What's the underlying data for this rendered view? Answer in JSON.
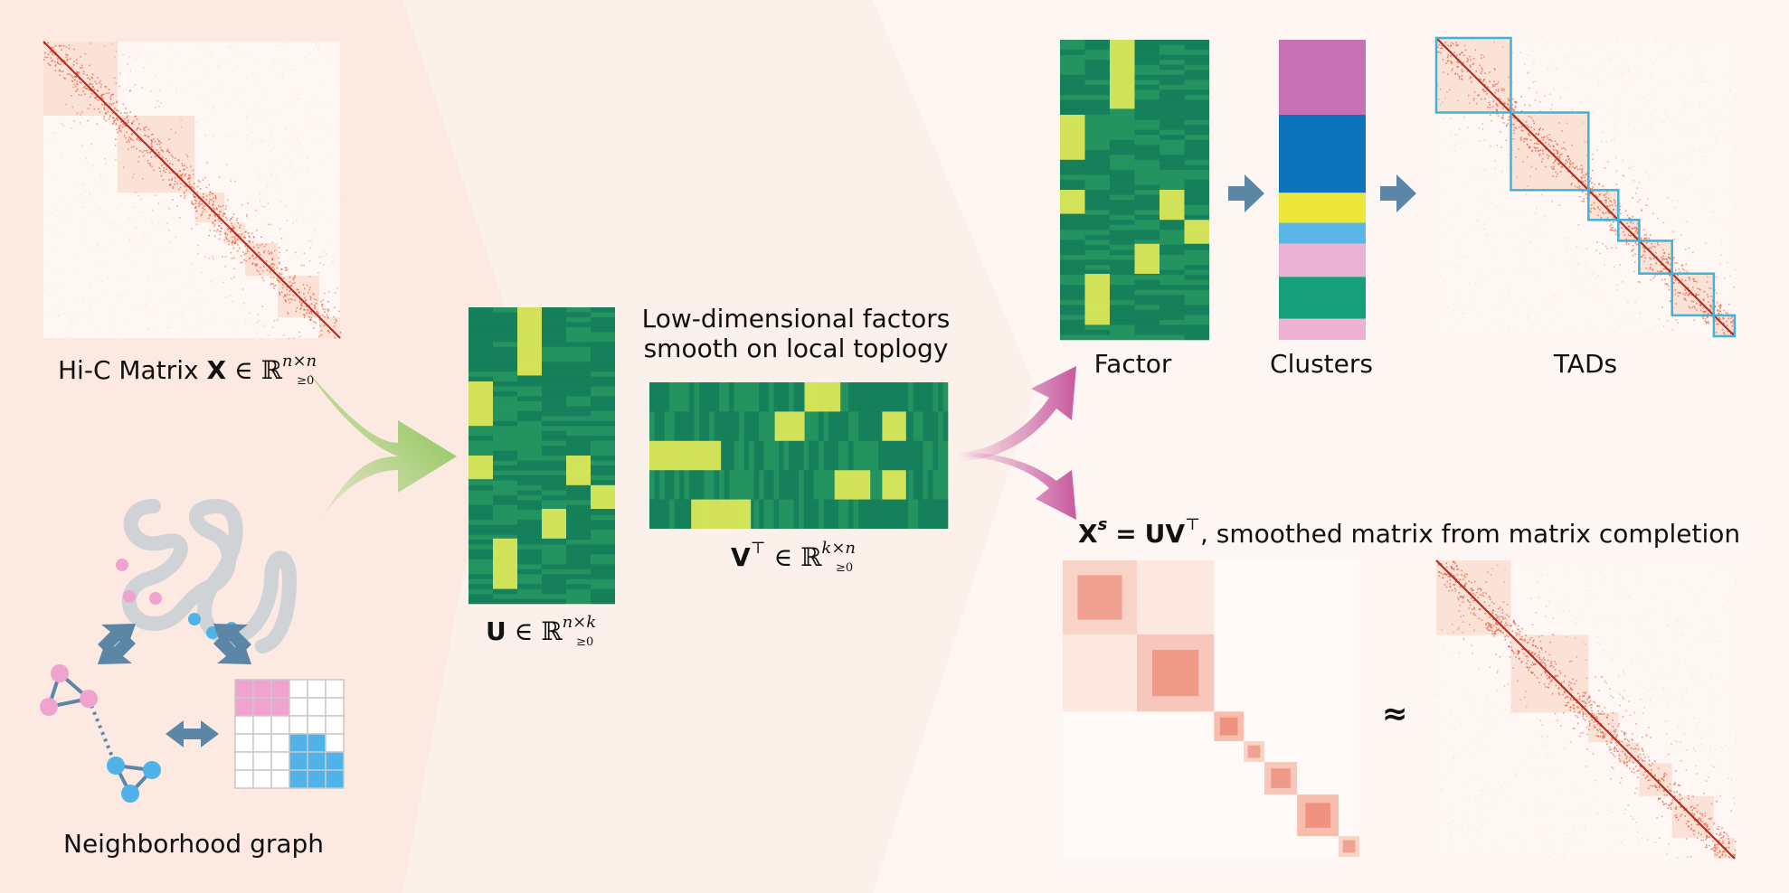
{
  "labels": {
    "hic_prefix": "Hi-C Matrix",
    "hic_X": "X",
    "hic_in": "∈ ℝ",
    "hic_sup": "n×n",
    "hic_sub": "≥0",
    "neighborhood": "Neighborhood graph",
    "U_sym": "U",
    "U_in": "∈ ℝ",
    "U_sup": "n×k",
    "U_sub": "≥0",
    "factors_line1": "Low-dimensional factors",
    "factors_line2": "smooth on local toplogy",
    "V_sym": "V",
    "V_T": "⊤",
    "V_in": "∈ ℝ",
    "V_sup": "k×n",
    "V_sub": "≥0",
    "factor": "Factor",
    "clusters": "Clusters",
    "tads": "TADs",
    "xs_X": "X",
    "xs_s": "s",
    "xs_eq": "=",
    "xs_UV": "UV",
    "xs_T": "⊤",
    "xs_text": ", smoothed matrix from matrix completion",
    "approx": "≈"
  },
  "colors": {
    "background": "#fdf6f2",
    "left_panel": "#fbe9e2",
    "hic_red": "#d7301f",
    "factor_dark": "#1a8a5e",
    "factor_bright": "#e6ec5a",
    "green_arrow": "#7cc243",
    "pink_arrow": "#c85a9e",
    "blue_arrow": "#5b86a6",
    "tad_box": "#3fb3d9",
    "node_pink": "#f0a3cf",
    "node_blue": "#4fb3e8"
  },
  "clusters": [
    {
      "name": "c1",
      "color": "#c571b4",
      "frac": 0.25
    },
    {
      "name": "c2",
      "color": "#0d73ba",
      "frac": 0.26
    },
    {
      "name": "c3",
      "color": "#ece53a",
      "frac": 0.1
    },
    {
      "name": "c4",
      "color": "#5bb6e6",
      "frac": 0.07
    },
    {
      "name": "c5",
      "color": "#ecb2d5",
      "frac": 0.11
    },
    {
      "name": "c6",
      "color": "#16a07a",
      "frac": 0.14
    },
    {
      "name": "c7",
      "color": "#efb1d2",
      "frac": 0.07
    }
  ],
  "tads": [
    0.25,
    0.51,
    0.61,
    0.68,
    0.79,
    0.93,
    1.0
  ]
}
